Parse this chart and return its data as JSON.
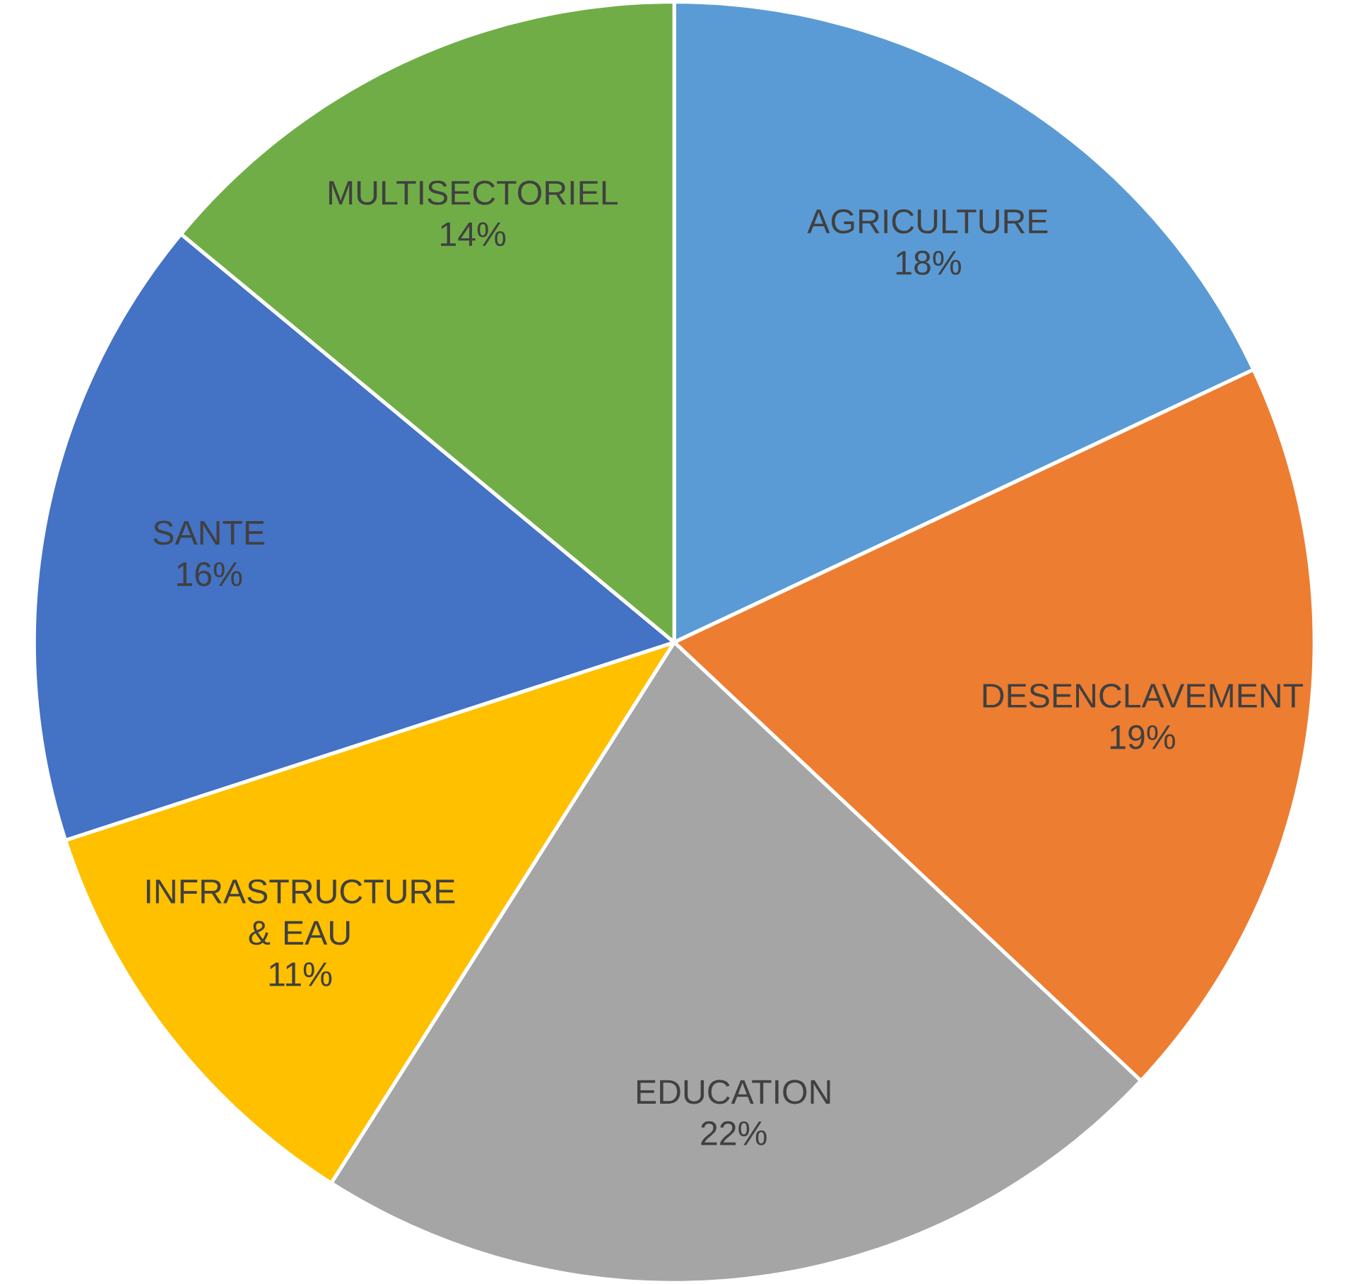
{
  "chart_data": {
    "type": "pie",
    "categories": [
      "AGRICULTURE",
      "DESENCLAVEMENT",
      "EDUCATION",
      "INFRASTRUCTURE & EAU",
      "SANTE",
      "MULTISECTORIEL"
    ],
    "values": [
      18,
      19,
      22,
      11,
      16,
      14
    ],
    "colors": [
      "#5b9bd5",
      "#ed7d31",
      "#a5a5a5",
      "#ffc000",
      "#4472c4",
      "#70ad47"
    ],
    "value_labels": [
      "18%",
      "19%",
      "22%",
      "11%",
      "16%",
      "14%"
    ]
  }
}
